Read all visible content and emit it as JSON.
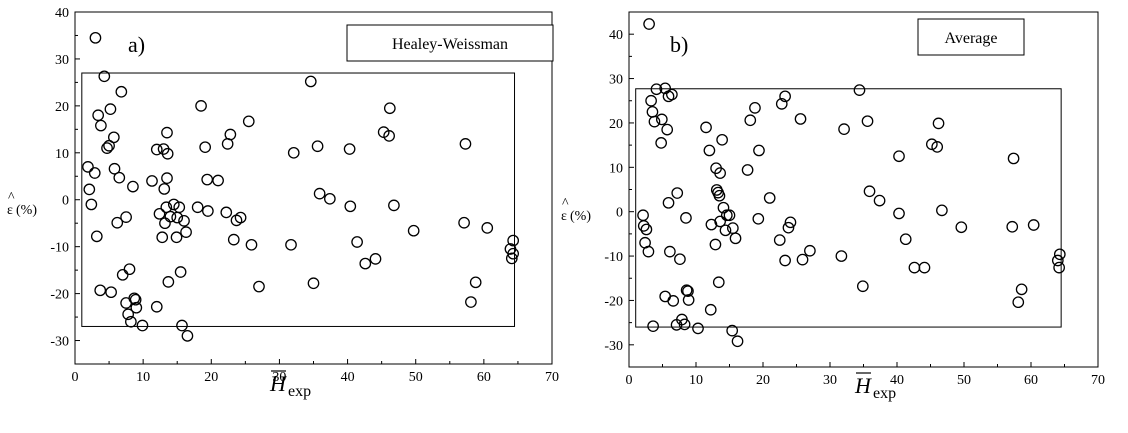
{
  "chart_data": [
    {
      "type": "scatter",
      "panel_label": "a)",
      "legend_box": "Healey-Weissman",
      "ylabel_symbol": "ε",
      "ylabel_hat": "^",
      "ylabel_unit": "(%)",
      "xlabel_symbol": "H",
      "xlabel_sub": "exp",
      "xlim": [
        0,
        70
      ],
      "ylim": [
        -35,
        40
      ],
      "xticks": [
        0,
        10,
        20,
        30,
        40,
        50,
        60,
        70
      ],
      "yticks": [
        -30,
        -20,
        -10,
        0,
        10,
        20,
        30,
        40
      ],
      "rect": {
        "x0": 1.0,
        "x1": 64.5,
        "y0": -27,
        "y1": 27
      },
      "points": [
        [
          3,
          34.5
        ],
        [
          4.3,
          26.3
        ],
        [
          1.9,
          7
        ],
        [
          2.1,
          2.2
        ],
        [
          2.4,
          -1
        ],
        [
          2.9,
          5.7
        ],
        [
          3.2,
          -7.8
        ],
        [
          3.4,
          18
        ],
        [
          3.8,
          15.8
        ],
        [
          3.7,
          -19.3
        ],
        [
          4.7,
          11
        ],
        [
          5,
          11.5
        ],
        [
          5.2,
          19.3
        ],
        [
          5.7,
          13.3
        ],
        [
          5.8,
          6.6
        ],
        [
          6.2,
          -4.9
        ],
        [
          6.5,
          4.7
        ],
        [
          6.8,
          23
        ],
        [
          7,
          -16
        ],
        [
          7.5,
          -3.7
        ],
        [
          7.5,
          -22
        ],
        [
          7.8,
          -24.4
        ],
        [
          8,
          -14.8
        ],
        [
          8.2,
          -26
        ],
        [
          8.5,
          2.8
        ],
        [
          8.7,
          -21
        ],
        [
          8.9,
          -21.3
        ],
        [
          9,
          -23
        ],
        [
          5.3,
          -19.7
        ],
        [
          9.9,
          -26.8
        ],
        [
          11.3,
          4
        ],
        [
          12,
          -22.8
        ],
        [
          12,
          10.7
        ],
        [
          12.4,
          -3
        ],
        [
          12.8,
          -8
        ],
        [
          13,
          10.8
        ],
        [
          13.1,
          2.3
        ],
        [
          13.2,
          -5
        ],
        [
          13.4,
          -1.6
        ],
        [
          13.5,
          4.6
        ],
        [
          13.5,
          14.3
        ],
        [
          13.6,
          9.8
        ],
        [
          13.7,
          -17.5
        ],
        [
          14,
          -3.6
        ],
        [
          14.5,
          -1
        ],
        [
          14.9,
          -8
        ],
        [
          15,
          -3.8
        ],
        [
          15.3,
          -1.6
        ],
        [
          15.5,
          -15.4
        ],
        [
          15.7,
          -26.8
        ],
        [
          16,
          -4.5
        ],
        [
          16.3,
          -6.9
        ],
        [
          16.5,
          -29
        ],
        [
          18,
          -1.6
        ],
        [
          18.5,
          20
        ],
        [
          19.1,
          11.2
        ],
        [
          19.4,
          4.3
        ],
        [
          19.5,
          -2.4
        ],
        [
          21,
          4.1
        ],
        [
          22.2,
          -2.7
        ],
        [
          22.4,
          11.9
        ],
        [
          22.8,
          13.9
        ],
        [
          23.3,
          -8.5
        ],
        [
          23.7,
          -4.4
        ],
        [
          24.3,
          -3.8
        ],
        [
          25.5,
          16.7
        ],
        [
          25.9,
          -9.6
        ],
        [
          27,
          -18.5
        ],
        [
          31.7,
          -9.6
        ],
        [
          32.1,
          10
        ],
        [
          34.6,
          25.2
        ],
        [
          35,
          -17.8
        ],
        [
          35.6,
          11.4
        ],
        [
          35.9,
          1.3
        ],
        [
          37.4,
          0.2
        ],
        [
          40.3,
          10.8
        ],
        [
          40.4,
          -1.4
        ],
        [
          41.4,
          -9
        ],
        [
          42.6,
          -13.6
        ],
        [
          44.1,
          -12.6
        ],
        [
          45.3,
          14.4
        ],
        [
          46.1,
          13.6
        ],
        [
          46.2,
          19.5
        ],
        [
          46.8,
          -1.2
        ],
        [
          49.7,
          -6.6
        ],
        [
          57.1,
          -4.9
        ],
        [
          57.3,
          11.9
        ],
        [
          58.1,
          -21.8
        ],
        [
          58.8,
          -17.6
        ],
        [
          60.5,
          -6
        ],
        [
          63.9,
          -10.5
        ],
        [
          64.1,
          -12.5
        ],
        [
          64.3,
          -11.5
        ],
        [
          64.3,
          -8.7
        ]
      ]
    },
    {
      "type": "scatter",
      "panel_label": "b)",
      "legend_box": "Average",
      "ylabel_symbol": "ε",
      "ylabel_hat": "^",
      "ylabel_unit": "(%)",
      "xlabel_symbol": "H",
      "xlabel_sub": "exp",
      "xlim": [
        0,
        70
      ],
      "ylim": [
        -35,
        45
      ],
      "xticks": [
        0,
        10,
        20,
        30,
        40,
        50,
        60,
        70
      ],
      "yticks": [
        -30,
        -20,
        -10,
        0,
        10,
        20,
        30,
        40
      ],
      "rect": {
        "x0": 1.0,
        "x1": 64.5,
        "y0": -26,
        "y1": 27.7
      },
      "points": [
        [
          3,
          42.3
        ],
        [
          4.1,
          27.6
        ],
        [
          5.4,
          27.8
        ],
        [
          6.4,
          26.4
        ],
        [
          5.9,
          26
        ],
        [
          3.3,
          25
        ],
        [
          3.5,
          22.5
        ],
        [
          3.8,
          20.3
        ],
        [
          4.9,
          20.8
        ],
        [
          5.7,
          18.5
        ],
        [
          4.8,
          15.5
        ],
        [
          2.1,
          -0.8
        ],
        [
          2.2,
          -3.2
        ],
        [
          2.4,
          -7
        ],
        [
          2.6,
          -4
        ],
        [
          2.9,
          -9
        ],
        [
          3.6,
          -25.8
        ],
        [
          5.4,
          -19.1
        ],
        [
          5.9,
          2
        ],
        [
          6.1,
          -9
        ],
        [
          6.6,
          -20.1
        ],
        [
          7.1,
          -25.5
        ],
        [
          7.2,
          4.2
        ],
        [
          7.6,
          -10.7
        ],
        [
          7.9,
          -24.3
        ],
        [
          8.3,
          -25.4
        ],
        [
          8.5,
          -1.4
        ],
        [
          8.6,
          -17.7
        ],
        [
          8.8,
          -17.9
        ],
        [
          8.9,
          -19.9
        ],
        [
          10.3,
          -26.3
        ],
        [
          11.5,
          19
        ],
        [
          12,
          13.8
        ],
        [
          12.2,
          -22.1
        ],
        [
          12.3,
          -2.9
        ],
        [
          12.9,
          -7.4
        ],
        [
          13.1,
          4.9
        ],
        [
          13,
          9.8
        ],
        [
          13.3,
          4.3
        ],
        [
          13.4,
          -15.9
        ],
        [
          13.5,
          3.6
        ],
        [
          13.6,
          -2.2
        ],
        [
          13.9,
          16.2
        ],
        [
          13.6,
          8.7
        ],
        [
          14.1,
          0.9
        ],
        [
          14.4,
          -4.2
        ],
        [
          14.6,
          -0.8
        ],
        [
          15,
          -0.8
        ],
        [
          15.4,
          -26.8
        ],
        [
          15.5,
          -3.7
        ],
        [
          15.9,
          -6
        ],
        [
          16.2,
          -29.2
        ],
        [
          17.7,
          9.4
        ],
        [
          18.1,
          20.6
        ],
        [
          18.8,
          23.4
        ],
        [
          19.4,
          13.8
        ],
        [
          19.3,
          -1.6
        ],
        [
          21,
          3.1
        ],
        [
          22.5,
          -6.4
        ],
        [
          22.8,
          24.3
        ],
        [
          23.3,
          26
        ],
        [
          23.3,
          -11
        ],
        [
          23.8,
          -3.6
        ],
        [
          24.1,
          -2.4
        ],
        [
          25.6,
          20.9
        ],
        [
          25.9,
          -10.8
        ],
        [
          27,
          -8.8
        ],
        [
          31.7,
          -10
        ],
        [
          32.1,
          18.6
        ],
        [
          34.4,
          27.4
        ],
        [
          34.9,
          -16.8
        ],
        [
          35.6,
          20.4
        ],
        [
          35.9,
          4.6
        ],
        [
          37.4,
          2.5
        ],
        [
          40.3,
          12.5
        ],
        [
          40.3,
          -0.4
        ],
        [
          41.3,
          -6.2
        ],
        [
          42.6,
          -12.6
        ],
        [
          44.1,
          -12.6
        ],
        [
          45.2,
          15.2
        ],
        [
          46,
          14.6
        ],
        [
          46.2,
          19.9
        ],
        [
          46.7,
          0.3
        ],
        [
          49.6,
          -3.5
        ],
        [
          57.2,
          -3.4
        ],
        [
          57.4,
          12
        ],
        [
          58.1,
          -20.4
        ],
        [
          58.6,
          -17.5
        ],
        [
          60.4,
          -3
        ],
        [
          64,
          -11
        ],
        [
          64.2,
          -12.6
        ],
        [
          64.3,
          -9.6
        ]
      ]
    }
  ]
}
